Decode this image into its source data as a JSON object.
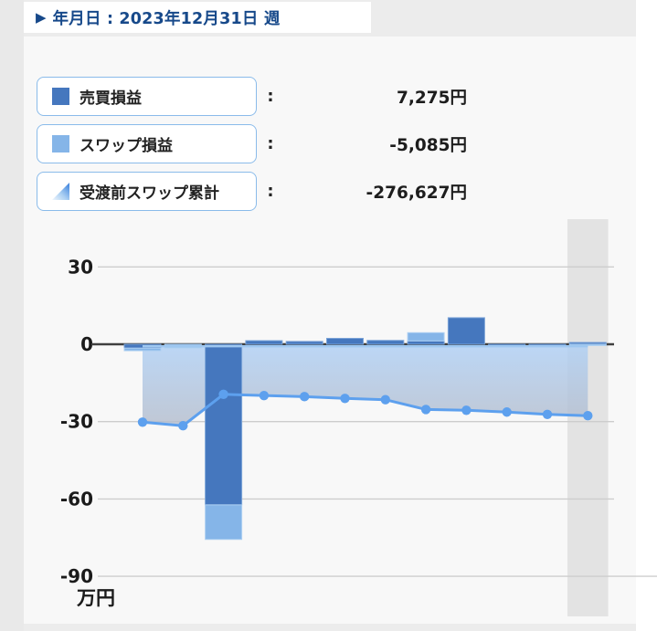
{
  "header": {
    "caret_icon": "▶",
    "title": "年月日 : 2023年12月31日 週"
  },
  "legend": {
    "colon": ":",
    "items": [
      {
        "label": "売買損益",
        "value": "7,275円",
        "swatch": "square-dark-blue",
        "color": "#4577be"
      },
      {
        "label": "スワップ損益",
        "value": "-5,085円",
        "swatch": "square-light-blue",
        "color": "#85b5e8"
      },
      {
        "label": "受渡前スワップ累計",
        "value": "-276,627円",
        "swatch": "area-triangle",
        "color": "#5da0ee"
      }
    ]
  },
  "chart_data": {
    "type": "bar",
    "subtype": "combo-stacked-bar-plus-line-area",
    "x_period": "12 weekly periods ending 2023-12-31 (no x tick labels shown)",
    "num_points": 12,
    "highlight_index": 11,
    "yticks": [
      30,
      0,
      -30,
      -60,
      -90
    ],
    "ylabel": "万円",
    "ylim": [
      -105,
      48
    ],
    "grid": true,
    "series": [
      {
        "name": "売買損益",
        "type": "bar",
        "color": "#4577be",
        "values": [
          -1.5,
          0,
          -62.3,
          1.4,
          1.1,
          2.3,
          1.5,
          1.3,
          10.3,
          -0.8,
          -0.5,
          0.7
        ]
      },
      {
        "name": "スワップ損益",
        "type": "bar",
        "color": "#85b5e8",
        "values": [
          -1.0,
          -1.4,
          -13.4,
          0,
          0,
          0,
          0,
          3.2,
          0,
          0,
          0,
          -0.5
        ]
      },
      {
        "name": "受渡前スワップ累計",
        "type": "line-area",
        "color": "#5da0ee",
        "values": [
          -30.2,
          -31.6,
          -19.4,
          -19.9,
          -20.3,
          -21.0,
          -21.5,
          -25.3,
          -25.6,
          -26.3,
          -27.2,
          -27.7
        ]
      }
    ],
    "colors": {
      "highlight_band": "#e3e3e3",
      "gridline": "#cdcdcd",
      "zero_axis": "#3f3f3f",
      "area_top": "#aecff5",
      "area_bottom": "#b4bccb",
      "area_edge": "#9ec7f0"
    }
  }
}
